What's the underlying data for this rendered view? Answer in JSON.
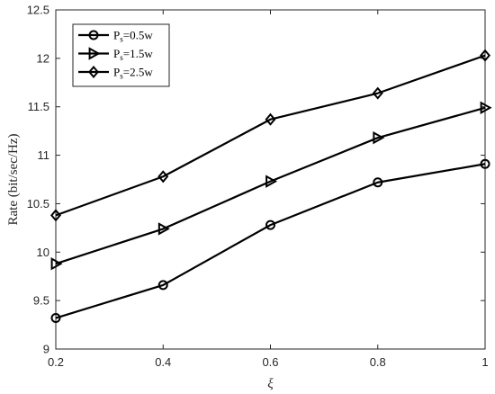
{
  "chart_data": {
    "type": "line",
    "title": "",
    "xlabel": "ξ",
    "ylabel": "Rate (bit/sec/Hz)",
    "x": [
      0.2,
      0.4,
      0.6,
      0.8,
      1.0
    ],
    "xlim": [
      0.2,
      1.0
    ],
    "ylim": [
      9,
      12.5
    ],
    "xticks": [
      "0.2",
      "0.4",
      "0.6",
      "0.8",
      "1"
    ],
    "yticks": [
      "9",
      "9.5",
      "10",
      "10.5",
      "11",
      "11.5",
      "12",
      "12.5"
    ],
    "grid": false,
    "legend_position": "top-left",
    "series": [
      {
        "name": "P_s=0.5w",
        "name_main": "P",
        "name_sub": "s",
        "name_rest": "=0.5w",
        "marker": "circle",
        "color": "#000000",
        "values": [
          9.32,
          9.66,
          10.28,
          10.72,
          10.91
        ]
      },
      {
        "name": "P_s=1.5w",
        "name_main": "P",
        "name_sub": "s",
        "name_rest": "=1.5w",
        "marker": "triangle-right",
        "color": "#000000",
        "values": [
          9.88,
          10.24,
          10.73,
          11.18,
          11.49
        ]
      },
      {
        "name": "P_s=2.5w",
        "name_main": "P",
        "name_sub": "s",
        "name_rest": "=2.5w",
        "marker": "diamond",
        "color": "#000000",
        "values": [
          10.38,
          10.78,
          11.37,
          11.64,
          12.03
        ]
      }
    ]
  }
}
